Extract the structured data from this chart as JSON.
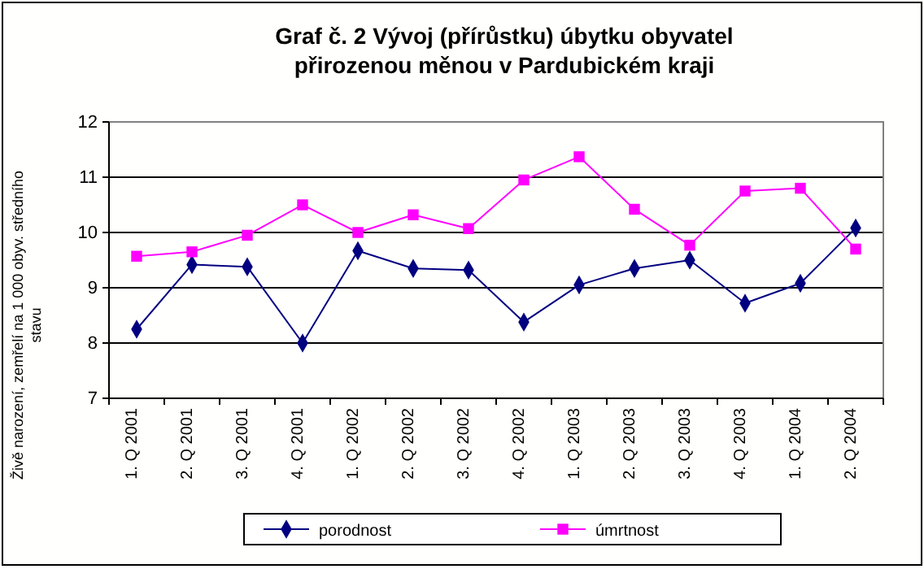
{
  "chart_data": {
    "type": "line",
    "title": "Graf č. 2  Vývoj (přírůstku) úbytku obyvatel přirozenou měnou v Pardubickém kraji",
    "ylabel": "Živě narození, zemřelí na 1 000 obyv. středního stavu",
    "categories": [
      "1. Q 2001",
      "2. Q 2001",
      "3. Q 2001",
      "4. Q 2001",
      "1. Q 2002",
      "2. Q 2002",
      "3. Q 2002",
      "4. Q 2002",
      "1. Q 2003",
      "2. Q 2003",
      "3. Q 2003",
      "4. Q 2003",
      "1. Q 2004",
      "2. Q 2004"
    ],
    "series": [
      {
        "name": "porodnost",
        "color": "#000080",
        "marker": "diamond",
        "values": [
          8.25,
          9.42,
          9.38,
          8.0,
          9.67,
          9.35,
          9.32,
          8.38,
          9.05,
          9.35,
          9.5,
          8.72,
          9.08,
          10.08
        ]
      },
      {
        "name": "úmrtnost",
        "color": "#ff00ff",
        "marker": "square",
        "values": [
          9.57,
          9.65,
          9.95,
          10.5,
          10.0,
          10.32,
          10.07,
          10.95,
          11.37,
          10.42,
          9.77,
          10.75,
          10.8,
          9.7
        ]
      }
    ],
    "ylim": [
      7,
      12
    ],
    "yticks": [
      7,
      8,
      9,
      10,
      11,
      12
    ],
    "grid": "y",
    "legend": "bottom"
  }
}
